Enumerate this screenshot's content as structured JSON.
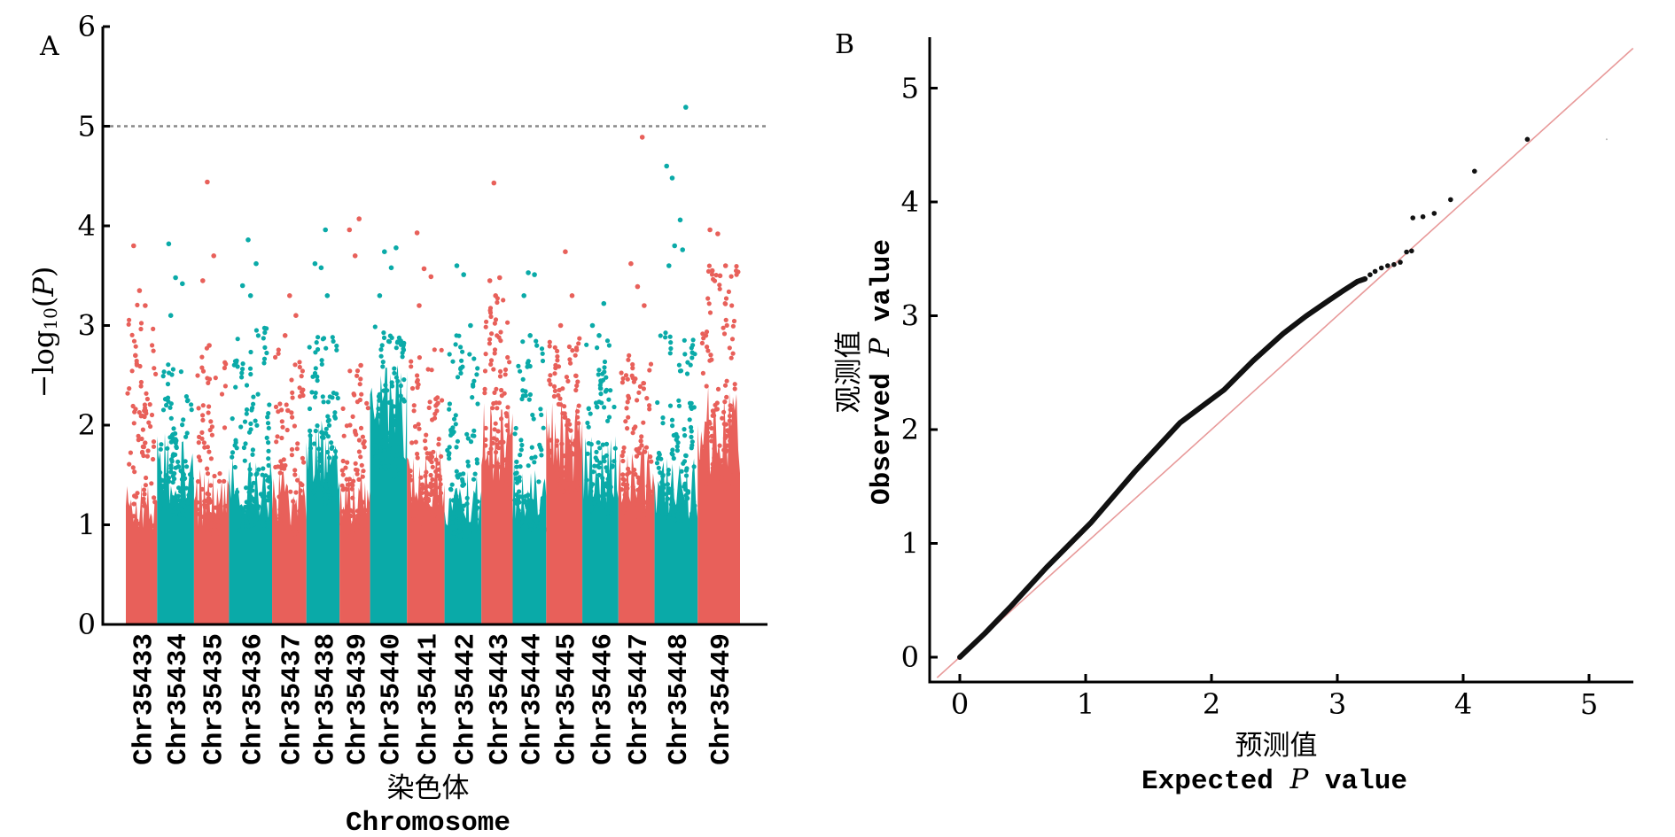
{
  "chart_data": [
    {
      "panel": "A",
      "type": "scatter",
      "subtype": "manhattan",
      "title": "",
      "xlabel_cn": "染色体",
      "xlabel_en": "Chromosome",
      "ylabel": "-log10(P)",
      "ylabel_parts": {
        "prefix": "−log",
        "subscript": "10",
        "paren_open": "(",
        "var": "P",
        "paren_close": ")"
      },
      "ylim": [
        0,
        6
      ],
      "yticks": [
        "0",
        "1",
        "2",
        "3",
        "4",
        "5",
        "6"
      ],
      "significance_threshold": 5,
      "grid": false,
      "colors": {
        "odd": "#E8605A",
        "even": "#0AAAA8",
        "threshold_line": "#888888"
      },
      "chromosomes": [
        {
          "name": "Chr35433",
          "relative_length": 0.85,
          "bulk_max": 3.3,
          "dense_max": 1.2,
          "top_hits": [
            3.8,
            3.35,
            3.2,
            2.7
          ]
        },
        {
          "name": "Chr35434",
          "relative_length": 1.0,
          "bulk_max": 2.7,
          "dense_max": 1.6,
          "top_hits": [
            3.82,
            3.48,
            3.42,
            3.1
          ]
        },
        {
          "name": "Chr35435",
          "relative_length": 0.95,
          "bulk_max": 2.8,
          "dense_max": 1.3,
          "top_hits": [
            4.44,
            3.7,
            3.45,
            2.8
          ]
        },
        {
          "name": "Chr35436",
          "relative_length": 1.17,
          "bulk_max": 3.0,
          "dense_max": 1.4,
          "top_hits": [
            3.86,
            3.62,
            3.4,
            3.3
          ]
        },
        {
          "name": "Chr35437",
          "relative_length": 0.93,
          "bulk_max": 2.8,
          "dense_max": 1.3,
          "top_hits": [
            3.3,
            3.1,
            2.9
          ]
        },
        {
          "name": "Chr35438",
          "relative_length": 0.9,
          "bulk_max": 2.9,
          "dense_max": 1.8,
          "top_hits": [
            3.96,
            3.62,
            3.58,
            3.3
          ]
        },
        {
          "name": "Chr35439",
          "relative_length": 0.83,
          "bulk_max": 2.6,
          "dense_max": 1.3,
          "top_hits": [
            4.07,
            3.96,
            3.7,
            2.6
          ]
        },
        {
          "name": "Chr35440",
          "relative_length": 1.0,
          "bulk_max": 3.0,
          "dense_max": 2.2,
          "top_hits": [
            3.78,
            3.74,
            3.58,
            3.3
          ]
        },
        {
          "name": "Chr35441",
          "relative_length": 1.02,
          "bulk_max": 2.8,
          "dense_max": 1.5,
          "top_hits": [
            3.93,
            3.57,
            3.49,
            3.2
          ]
        },
        {
          "name": "Chr35442",
          "relative_length": 1.0,
          "bulk_max": 2.9,
          "dense_max": 1.3,
          "top_hits": [
            3.6,
            3.51,
            3.0
          ]
        },
        {
          "name": "Chr35443",
          "relative_length": 0.85,
          "bulk_max": 3.3,
          "dense_max": 1.9,
          "top_hits": [
            4.43,
            3.48,
            3.45,
            3.3
          ]
        },
        {
          "name": "Chr35444",
          "relative_length": 0.91,
          "bulk_max": 2.9,
          "dense_max": 1.4,
          "top_hits": [
            3.53,
            3.51,
            3.3,
            2.9
          ]
        },
        {
          "name": "Chr35445",
          "relative_length": 0.98,
          "bulk_max": 2.9,
          "dense_max": 1.9,
          "top_hits": [
            3.74,
            3.3,
            3.0
          ]
        },
        {
          "name": "Chr35446",
          "relative_length": 0.98,
          "bulk_max": 3.0,
          "dense_max": 1.6,
          "top_hits": [
            3.22,
            3.0,
            2.9
          ]
        },
        {
          "name": "Chr35447",
          "relative_length": 0.98,
          "bulk_max": 2.7,
          "dense_max": 1.5,
          "top_hits": [
            4.89,
            3.62,
            3.39,
            3.2
          ]
        },
        {
          "name": "Chr35448",
          "relative_length": 1.17,
          "bulk_max": 3.0,
          "dense_max": 1.4,
          "top_hits": [
            5.19,
            4.48,
            4.06,
            4.6,
            3.8,
            3.76,
            3.6
          ]
        },
        {
          "name": "Chr35449",
          "relative_length": 1.15,
          "bulk_max": 3.6,
          "dense_max": 2.0,
          "top_hits": [
            3.96,
            3.92,
            3.6,
            3.55,
            3.5
          ]
        }
      ]
    },
    {
      "panel": "B",
      "type": "scatter",
      "subtype": "qq",
      "title": "",
      "xlabel_cn": "预测值",
      "xlabel_en_prefix": "Expected ",
      "xlabel_en_var": "P",
      "xlabel_en_suffix": " value",
      "ylabel_cn": "观测值",
      "ylabel_en_prefix": "Observed ",
      "ylabel_en_var": "P",
      "ylabel_en_suffix": " value",
      "xlim": [
        -0.2,
        5.35
      ],
      "ylim": [
        -0.18,
        5.45
      ],
      "xticks": [
        "0",
        "1",
        "2",
        "3",
        "4",
        "5"
      ],
      "yticks": [
        "0",
        "1",
        "2",
        "3",
        "4",
        "5"
      ],
      "grid": false,
      "colors": {
        "points": "#111111",
        "reference_line": "#E89A9A"
      },
      "reference_line": {
        "slope": 1,
        "intercept": 0
      },
      "observed_curve": [
        [
          0,
          0
        ],
        [
          0.2,
          0.21
        ],
        [
          0.4,
          0.44
        ],
        [
          0.69,
          0.79
        ],
        [
          1.04,
          1.18
        ],
        [
          1.39,
          1.63
        ],
        [
          1.75,
          2.06
        ],
        [
          2.1,
          2.35
        ],
        [
          2.33,
          2.61
        ],
        [
          2.57,
          2.84
        ],
        [
          2.75,
          3.0
        ],
        [
          2.93,
          3.13
        ],
        [
          3.05,
          3.22
        ],
        [
          3.16,
          3.3
        ],
        [
          3.22,
          3.32
        ]
      ],
      "tail_points": [
        [
          3.26,
          3.36
        ],
        [
          3.3,
          3.39
        ],
        [
          3.35,
          3.42
        ],
        [
          3.4,
          3.44
        ],
        [
          3.45,
          3.45
        ],
        [
          3.5,
          3.47
        ],
        [
          3.55,
          3.56
        ],
        [
          3.59,
          3.57
        ],
        [
          3.6,
          3.86
        ],
        [
          3.68,
          3.87
        ],
        [
          3.77,
          3.9
        ],
        [
          3.9,
          4.02
        ],
        [
          4.09,
          4.27
        ],
        [
          4.51,
          4.55
        ],
        [
          5.14,
          4.55
        ]
      ]
    }
  ],
  "panels": {
    "a_label": "A",
    "b_label": "B"
  }
}
